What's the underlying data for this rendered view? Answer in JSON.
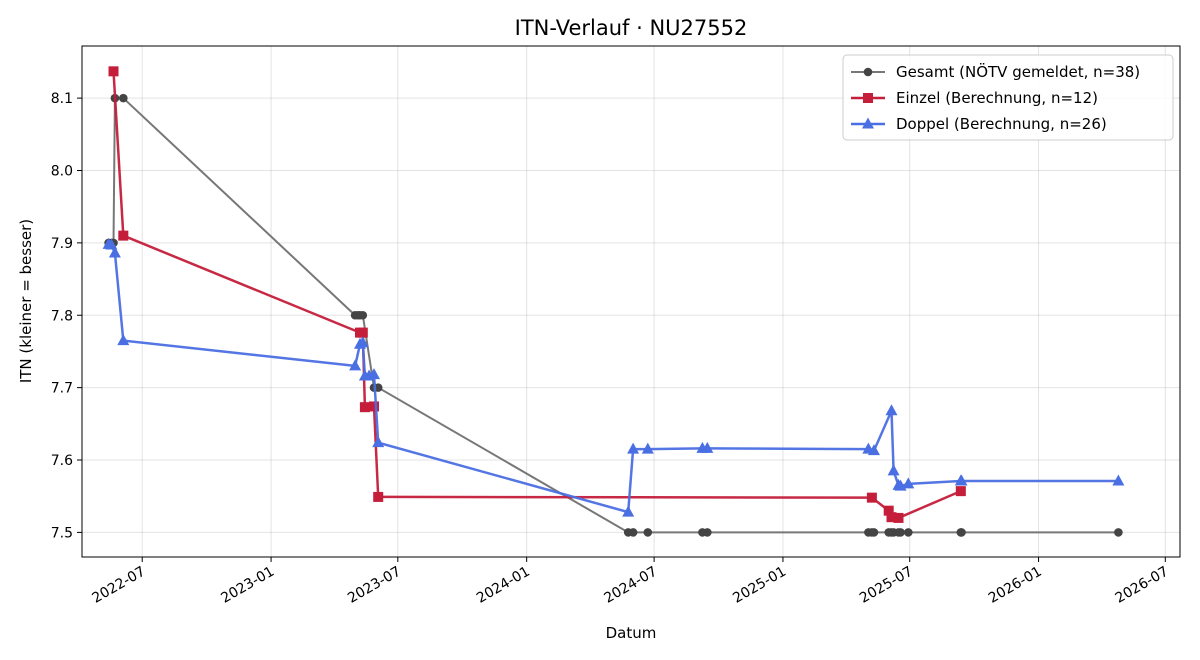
{
  "chart_data": {
    "type": "line",
    "title": "ITN-Verlauf · NU27552",
    "xlabel": "Datum",
    "ylabel": "ITN  (kleiner = besser)",
    "x_axis": "date",
    "xlim": [
      "2022-04-06",
      "2026-07-22"
    ],
    "ylim": [
      7.466,
      8.172
    ],
    "grid": true,
    "legend_position": "top-right",
    "x_ticks": [
      "2022-07",
      "2023-01",
      "2023-07",
      "2024-01",
      "2024-07",
      "2025-01",
      "2025-07",
      "2026-01",
      "2026-07"
    ],
    "y_ticks": [
      7.5,
      7.6,
      7.7,
      7.8,
      7.9,
      8.0,
      8.1
    ],
    "series": [
      {
        "name": "Gesamt (NÖTV gemeldet, n=38)",
        "color": "#444444",
        "line_color": "#777777",
        "marker": "circle",
        "points": [
          [
            "2022-05-14",
            7.9
          ],
          [
            "2022-05-18",
            7.9
          ],
          [
            "2022-05-21",
            7.9
          ],
          [
            "2022-05-23",
            8.1
          ],
          [
            "2022-06-04",
            8.1
          ],
          [
            "2023-05-01",
            7.8
          ],
          [
            "2023-05-05",
            7.8
          ],
          [
            "2023-05-08",
            7.8
          ],
          [
            "2023-05-12",
            7.8
          ],
          [
            "2023-05-28",
            7.7
          ],
          [
            "2023-06-03",
            7.7
          ],
          [
            "2024-05-25",
            7.5
          ],
          [
            "2024-06-01",
            7.5
          ],
          [
            "2024-06-22",
            7.5
          ],
          [
            "2024-09-08",
            7.5
          ],
          [
            "2024-09-15",
            7.5
          ],
          [
            "2025-05-03",
            7.5
          ],
          [
            "2025-05-08",
            7.5
          ],
          [
            "2025-05-11",
            7.5
          ],
          [
            "2025-06-01",
            7.5
          ],
          [
            "2025-06-05",
            7.5
          ],
          [
            "2025-06-08",
            7.5
          ],
          [
            "2025-06-15",
            7.5
          ],
          [
            "2025-06-18",
            7.5
          ],
          [
            "2025-06-29",
            7.5
          ],
          [
            "2025-09-12",
            7.5
          ],
          [
            "2025-09-13",
            7.5
          ],
          [
            "2026-04-25",
            7.5
          ]
        ]
      },
      {
        "name": "Einzel (Berechnung, n=12)",
        "color": "#c41e3a",
        "line_color": "#c41e3a",
        "marker": "square",
        "points": [
          [
            "2022-05-21",
            8.137
          ],
          [
            "2022-06-04",
            7.91
          ],
          [
            "2023-05-08",
            7.776
          ],
          [
            "2023-05-12",
            7.776
          ],
          [
            "2023-05-15",
            7.673
          ],
          [
            "2023-05-28",
            7.674
          ],
          [
            "2023-06-03",
            7.549
          ],
          [
            "2025-05-08",
            7.548
          ],
          [
            "2025-06-01",
            7.53
          ],
          [
            "2025-06-05",
            7.521
          ],
          [
            "2025-06-15",
            7.52
          ],
          [
            "2025-09-12",
            7.557
          ]
        ]
      },
      {
        "name": "Doppel (Berechnung, n=26)",
        "color": "#4a6fe3",
        "line_color": "#4a6fe3",
        "marker": "triangle",
        "points": [
          [
            "2022-05-14",
            7.898
          ],
          [
            "2022-05-18",
            7.897
          ],
          [
            "2022-05-23",
            7.886
          ],
          [
            "2022-06-04",
            7.765
          ],
          [
            "2023-05-01",
            7.73
          ],
          [
            "2023-05-08",
            7.76
          ],
          [
            "2023-05-12",
            7.762
          ],
          [
            "2023-05-15",
            7.716
          ],
          [
            "2023-05-21",
            7.716
          ],
          [
            "2023-05-28",
            7.718
          ],
          [
            "2023-06-03",
            7.624
          ],
          [
            "2024-05-25",
            7.528
          ],
          [
            "2024-06-01",
            7.615
          ],
          [
            "2024-06-22",
            7.615
          ],
          [
            "2024-09-08",
            7.616
          ],
          [
            "2024-09-15",
            7.616
          ],
          [
            "2025-05-03",
            7.615
          ],
          [
            "2025-05-11",
            7.613
          ],
          [
            "2025-06-05",
            7.668
          ],
          [
            "2025-06-08",
            7.585
          ],
          [
            "2025-06-15",
            7.565
          ],
          [
            "2025-06-18",
            7.564
          ],
          [
            "2025-06-29",
            7.567
          ],
          [
            "2025-09-12",
            7.571
          ],
          [
            "2025-09-13",
            7.571
          ],
          [
            "2026-04-25",
            7.571
          ]
        ]
      }
    ]
  }
}
